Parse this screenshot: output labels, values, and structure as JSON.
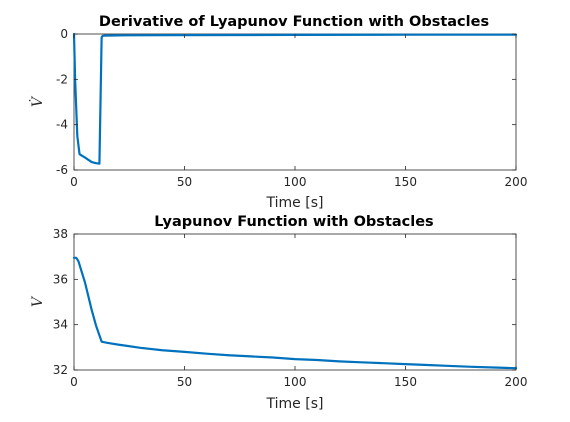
{
  "colors": {
    "series": "#0072BD",
    "axis": "#262626"
  },
  "chart_data": [
    {
      "type": "line",
      "title": "Derivative of Lyapunov Function with Obstacles",
      "xlabel": "Time [s]",
      "ylabel": "V̇",
      "xlim": [
        0,
        200
      ],
      "ylim": [
        -6,
        0
      ],
      "xticks": [
        0,
        50,
        100,
        150,
        200
      ],
      "yticks": [
        0,
        -2,
        -4,
        -6
      ],
      "grid": false,
      "series": [
        {
          "x": [
            0,
            0.5,
            1.5,
            2.5,
            5,
            8,
            10,
            11.5,
            12.5,
            13,
            14,
            20,
            45,
            100,
            150,
            200
          ],
          "y": [
            0,
            -2.0,
            -4.5,
            -5.3,
            -5.45,
            -5.65,
            -5.7,
            -5.72,
            -0.15,
            -0.08,
            -0.07,
            -0.06,
            -0.05,
            -0.04,
            -0.03,
            -0.03
          ]
        }
      ]
    },
    {
      "type": "line",
      "title": "Lyapunov Function with Obstacles",
      "xlabel": "Time [s]",
      "ylabel": "V",
      "xlim": [
        0,
        200
      ],
      "ylim": [
        32,
        38
      ],
      "xticks": [
        0,
        50,
        100,
        150,
        200
      ],
      "yticks": [
        32,
        34,
        36,
        38
      ],
      "grid": false,
      "series": [
        {
          "x": [
            0,
            1,
            2,
            5,
            8,
            10,
            12.5,
            15,
            20,
            30,
            40,
            50,
            60,
            70,
            80,
            90,
            100,
            110,
            120,
            130,
            140,
            150,
            160,
            170,
            180,
            190,
            200
          ],
          "y": [
            36.95,
            36.95,
            36.8,
            35.85,
            34.65,
            33.95,
            33.25,
            33.2,
            33.12,
            32.98,
            32.87,
            32.8,
            32.72,
            32.65,
            32.6,
            32.55,
            32.48,
            32.44,
            32.38,
            32.34,
            32.3,
            32.26,
            32.22,
            32.18,
            32.14,
            32.11,
            32.08
          ]
        }
      ]
    }
  ]
}
